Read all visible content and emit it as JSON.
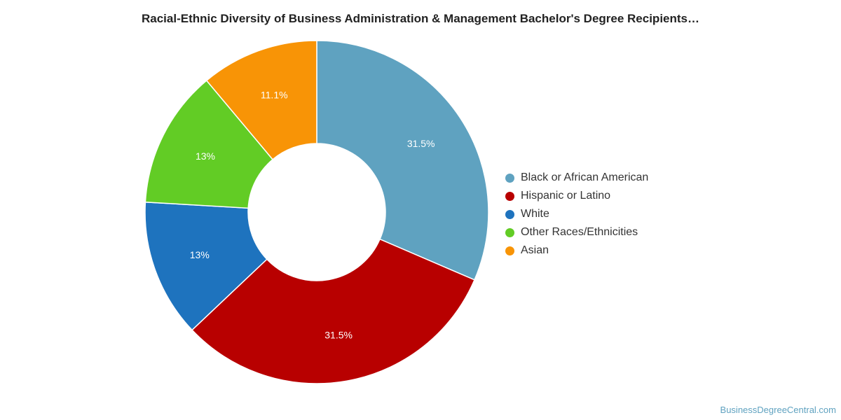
{
  "chart_data": {
    "type": "pie",
    "title": "Racial-Ethnic Diversity of Business Administration & Management Bachelor's Degree Recipients…",
    "categories": [
      "Black or African American",
      "Hispanic or Latino",
      "White",
      "Other Races/Ethnicities",
      "Asian"
    ],
    "values": [
      31.5,
      31.5,
      13,
      13,
      11.1
    ],
    "value_labels": [
      "31.5%",
      "31.5%",
      "13%",
      "13%",
      "11.1%"
    ],
    "colors": [
      "#5fa2c0",
      "#b80000",
      "#1e73be",
      "#62cc25",
      "#f89406"
    ],
    "donut": true,
    "legend_position": "right"
  },
  "watermark": "BusinessDegreeCentral.com"
}
